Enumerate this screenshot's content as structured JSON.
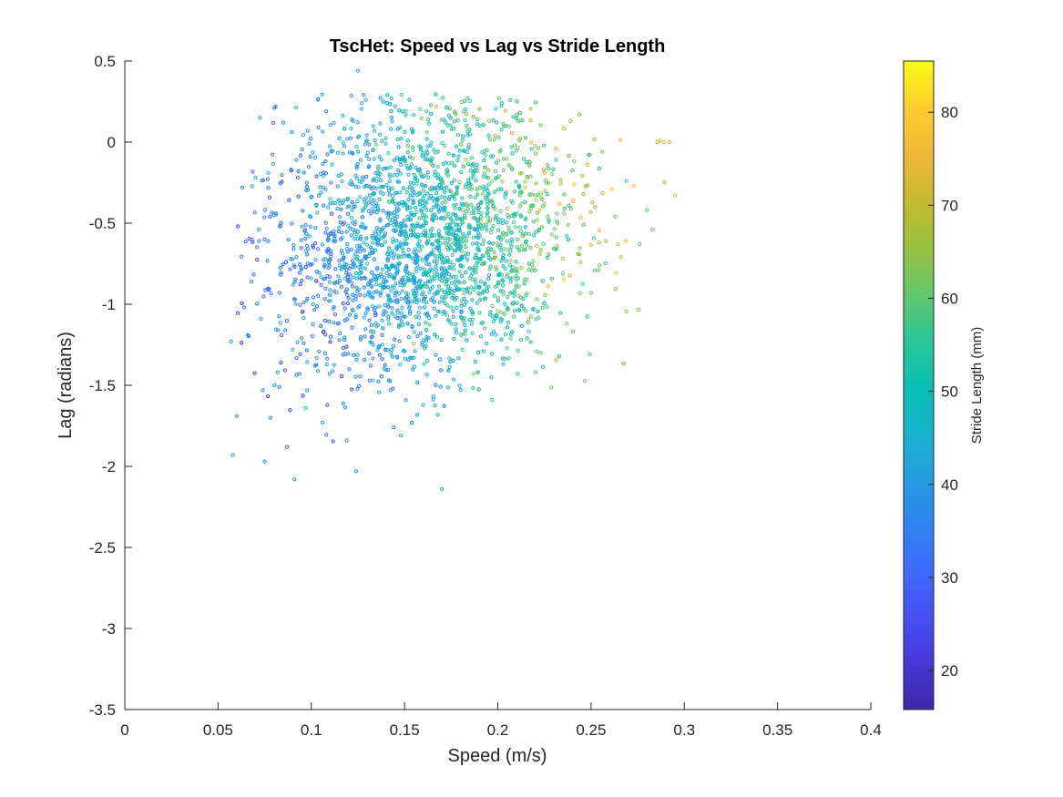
{
  "chart_data": {
    "type": "scatter",
    "title": "TscHet: Speed vs Lag vs Stride Length",
    "xlabel": "Speed (m/s)",
    "ylabel": "Lag (radians)",
    "xlim": [
      0,
      0.4
    ],
    "ylim": [
      -3.5,
      0.5
    ],
    "xticks": [
      0,
      0.05,
      0.1,
      0.15,
      0.2,
      0.25,
      0.3,
      0.35,
      0.4
    ],
    "xtick_labels": [
      "0",
      "0.05",
      "0.1",
      "0.15",
      "0.2",
      "0.25",
      "0.3",
      "0.35",
      "0.4"
    ],
    "yticks": [
      0.5,
      0,
      -0.5,
      -1,
      -1.5,
      -2,
      -2.5,
      -3,
      -3.5
    ],
    "ytick_labels": [
      "0.5",
      "0",
      "-0.5",
      "-1",
      "-1.5",
      "-2",
      "-2.5",
      "-3",
      "-3.5"
    ],
    "grid": false,
    "marker": "open-circle",
    "colorbar": {
      "label": "Stride Length (mm)",
      "colormap": "parula",
      "range": [
        15.8,
        85.5
      ],
      "ticks": [
        20,
        30,
        40,
        50,
        60,
        70,
        80
      ],
      "tick_labels": [
        "20",
        "30",
        "40",
        "50",
        "60",
        "70",
        "80"
      ],
      "colormap_stops": [
        "#3e26a8",
        "#4538d6",
        "#4750f5",
        "#3e6bfd",
        "#2e85f2",
        "#259de0",
        "#19b3cf",
        "#0ac0b5",
        "#2dc697",
        "#65c76b",
        "#99c13f",
        "#c8b92c",
        "#f0b83a",
        "#fcce2f",
        "#f9fb15"
      ]
    },
    "points_sampled": [
      [
        0.057,
        -1.23,
        40
      ],
      [
        0.058,
        -1.93,
        40
      ],
      [
        0.06,
        -1.69,
        34
      ],
      [
        0.063,
        -0.28,
        32
      ],
      [
        0.064,
        -1.02,
        36
      ],
      [
        0.066,
        -1.19,
        38
      ],
      [
        0.068,
        -0.86,
        34
      ],
      [
        0.07,
        -0.22,
        45
      ],
      [
        0.072,
        -0.61,
        33
      ],
      [
        0.073,
        -1.09,
        44
      ],
      [
        0.074,
        -1.53,
        36
      ],
      [
        0.075,
        -1.97,
        40
      ],
      [
        0.077,
        -0.19,
        42
      ],
      [
        0.078,
        -1.7,
        38
      ],
      [
        0.08,
        -0.45,
        37
      ],
      [
        0.082,
        -1.42,
        41
      ],
      [
        0.083,
        -0.93,
        33
      ],
      [
        0.085,
        0.12,
        34
      ],
      [
        0.086,
        -1.16,
        35
      ],
      [
        0.087,
        -1.88,
        31
      ],
      [
        0.089,
        -0.72,
        36
      ],
      [
        0.09,
        -1.28,
        43
      ],
      [
        0.091,
        -2.08,
        39
      ],
      [
        0.092,
        -0.11,
        38
      ],
      [
        0.095,
        -0.52,
        42
      ],
      [
        0.097,
        -1.64,
        45
      ],
      [
        0.098,
        0.07,
        37
      ],
      [
        0.1,
        -0.84,
        47
      ],
      [
        0.102,
        -1.38,
        40
      ],
      [
        0.104,
        -0.33,
        33
      ],
      [
        0.106,
        -1.73,
        41
      ],
      [
        0.108,
        0.19,
        32
      ],
      [
        0.11,
        -0.98,
        46
      ],
      [
        0.112,
        -0.61,
        38
      ],
      [
        0.115,
        -1.22,
        36
      ],
      [
        0.117,
        -0.07,
        42
      ],
      [
        0.119,
        -1.84,
        37
      ],
      [
        0.122,
        -0.42,
        46
      ],
      [
        0.124,
        -2.03,
        39
      ],
      [
        0.125,
        0.44,
        38
      ],
      [
        0.127,
        0.24,
        44
      ],
      [
        0.13,
        -0.75,
        48
      ],
      [
        0.133,
        -1.47,
        45
      ],
      [
        0.135,
        -0.24,
        41
      ],
      [
        0.138,
        -1.1,
        42
      ],
      [
        0.14,
        -0.01,
        46
      ],
      [
        0.143,
        0.27,
        44
      ],
      [
        0.145,
        -0.55,
        39
      ],
      [
        0.148,
        -1.81,
        43
      ],
      [
        0.15,
        -0.88,
        50
      ],
      [
        0.153,
        -0.16,
        52
      ],
      [
        0.155,
        -1.33,
        47
      ],
      [
        0.158,
        -0.47,
        55
      ],
      [
        0.16,
        -1.62,
        44
      ],
      [
        0.162,
        0.06,
        60
      ],
      [
        0.165,
        -0.69,
        58
      ],
      [
        0.167,
        0.22,
        68
      ],
      [
        0.17,
        -2.14,
        44
      ],
      [
        0.172,
        -0.37,
        61
      ],
      [
        0.175,
        -1.02,
        53
      ],
      [
        0.177,
        0.18,
        63
      ],
      [
        0.179,
        -0.59,
        57
      ],
      [
        0.181,
        -1.28,
        55
      ],
      [
        0.183,
        -0.11,
        64
      ],
      [
        0.185,
        -0.84,
        60
      ],
      [
        0.187,
        -1.43,
        62
      ],
      [
        0.189,
        0.14,
        58
      ],
      [
        0.191,
        -0.49,
        66
      ],
      [
        0.193,
        -1.15,
        59
      ],
      [
        0.195,
        -0.22,
        62
      ],
      [
        0.197,
        -1.59,
        55
      ],
      [
        0.199,
        -0.71,
        69
      ],
      [
        0.201,
        -0.06,
        65
      ],
      [
        0.203,
        -0.94,
        62
      ],
      [
        0.205,
        -0.41,
        70
      ],
      [
        0.207,
        -1.21,
        58
      ],
      [
        0.209,
        -0.02,
        63
      ],
      [
        0.211,
        -0.66,
        64
      ],
      [
        0.213,
        -0.31,
        67
      ],
      [
        0.215,
        -1.04,
        61
      ],
      [
        0.217,
        -0.12,
        59
      ],
      [
        0.219,
        -0.77,
        72
      ],
      [
        0.221,
        -0.48,
        66
      ],
      [
        0.223,
        -1.3,
        60
      ],
      [
        0.225,
        -0.19,
        68
      ],
      [
        0.227,
        -0.89,
        74
      ],
      [
        0.229,
        -0.57,
        63
      ],
      [
        0.231,
        -0.04,
        70
      ],
      [
        0.233,
        -0.38,
        75
      ],
      [
        0.235,
        -0.81,
        61
      ],
      [
        0.237,
        -1.12,
        62
      ],
      [
        0.239,
        0.13,
        65
      ],
      [
        0.241,
        -0.26,
        78
      ],
      [
        0.243,
        -0.69,
        64
      ],
      [
        0.246,
        -0.51,
        62
      ],
      [
        0.248,
        -0.14,
        71
      ],
      [
        0.25,
        -0.93,
        60
      ],
      [
        0.252,
        -0.4,
        66
      ],
      [
        0.254,
        -0.79,
        59
      ],
      [
        0.256,
        -0.06,
        62
      ],
      [
        0.258,
        -0.61,
        68
      ],
      [
        0.261,
        -0.29,
        77
      ],
      [
        0.263,
        -0.46,
        60
      ],
      [
        0.266,
        -0.71,
        65
      ],
      [
        0.269,
        -0.24,
        58
      ],
      [
        0.273,
        -0.27,
        72
      ],
      [
        0.276,
        -0.63,
        61
      ],
      [
        0.28,
        -0.42,
        59
      ],
      [
        0.283,
        -0.54,
        62
      ],
      [
        0.287,
        0.01,
        70
      ],
      [
        0.289,
        0.0,
        78
      ],
      [
        0.292,
        0.0,
        74
      ],
      [
        0.295,
        -0.33,
        76
      ]
    ]
  }
}
